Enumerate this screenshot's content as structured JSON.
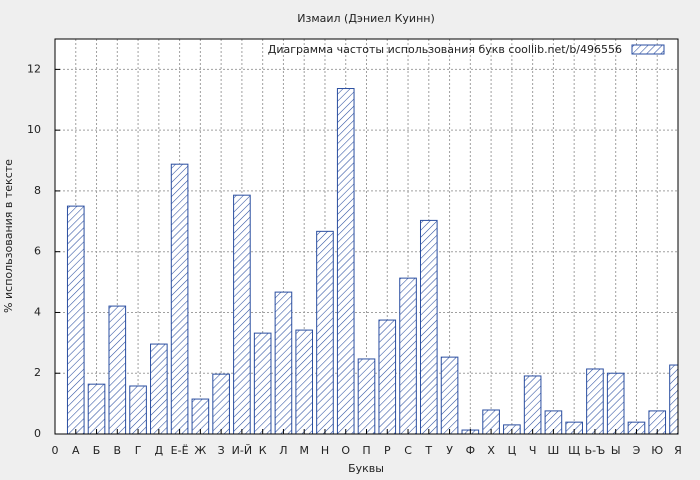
{
  "chart_data": {
    "type": "bar",
    "title": "Измаил (Дэниел Куинн)",
    "xlabel": "Буквы",
    "ylabel": "% использования в тексте",
    "x": [
      1,
      2,
      3,
      4,
      5,
      6,
      7,
      8,
      9,
      10,
      11,
      12,
      13,
      14,
      15,
      16,
      17,
      18,
      19,
      20,
      21,
      22,
      23,
      24,
      25,
      26,
      27,
      28,
      29,
      30
    ],
    "series": [
      {
        "name": "Диаграмма частоты использования букв  coollib.net/b/496556",
        "color": "#2a4ea0",
        "values": [
          7.5,
          1.64,
          4.21,
          1.58,
          2.96,
          8.88,
          1.15,
          1.97,
          7.86,
          3.32,
          4.67,
          3.42,
          6.67,
          11.37,
          2.47,
          3.75,
          5.13,
          7.03,
          2.53,
          0.13,
          0.79,
          0.3,
          1.91,
          0.76,
          0.39,
          2.14,
          2.0,
          0.39,
          0.76,
          2.27
        ]
      }
    ],
    "xlim": [
      0,
      30
    ],
    "xticks": [
      0,
      {
        "value": 1,
        "label": "А"
      },
      {
        "value": 2,
        "label": "Б"
      },
      {
        "value": 3,
        "label": "В"
      },
      {
        "value": 4,
        "label": "Г"
      },
      {
        "value": 5,
        "label": "Д"
      },
      {
        "value": 6,
        "label": "Е-Ё"
      },
      {
        "value": 7,
        "label": "Ж"
      },
      {
        "value": 8,
        "label": "З"
      },
      {
        "value": 9,
        "label": "И-Й"
      },
      {
        "value": 10,
        "label": "К"
      },
      {
        "value": 11,
        "label": "Л"
      },
      {
        "value": 12,
        "label": "М"
      },
      {
        "value": 13,
        "label": "Н"
      },
      {
        "value": 14,
        "label": "О"
      },
      {
        "value": 15,
        "label": "П"
      },
      {
        "value": 16,
        "label": "Р"
      },
      {
        "value": 17,
        "label": "С"
      },
      {
        "value": 18,
        "label": "Т"
      },
      {
        "value": 19,
        "label": "У"
      },
      {
        "value": 20,
        "label": "Ф"
      },
      {
        "value": 21,
        "label": "Х"
      },
      {
        "value": 22,
        "label": "Ц"
      },
      {
        "value": 23,
        "label": "Ч"
      },
      {
        "value": 24,
        "label": "Ш"
      },
      {
        "value": 25,
        "label": "Щ"
      },
      {
        "value": 26,
        "label": "Ь-Ъ"
      },
      {
        "value": 27,
        "label": "Ы"
      },
      {
        "value": 28,
        "label": "Э"
      },
      {
        "value": 29,
        "label": "Ю"
      },
      {
        "value": 30,
        "label": "Я"
      }
    ],
    "ylim": [
      0,
      13
    ],
    "yticks": [
      0,
      2,
      4,
      6,
      8,
      10,
      12
    ],
    "grid": true,
    "legend": "top-right"
  }
}
